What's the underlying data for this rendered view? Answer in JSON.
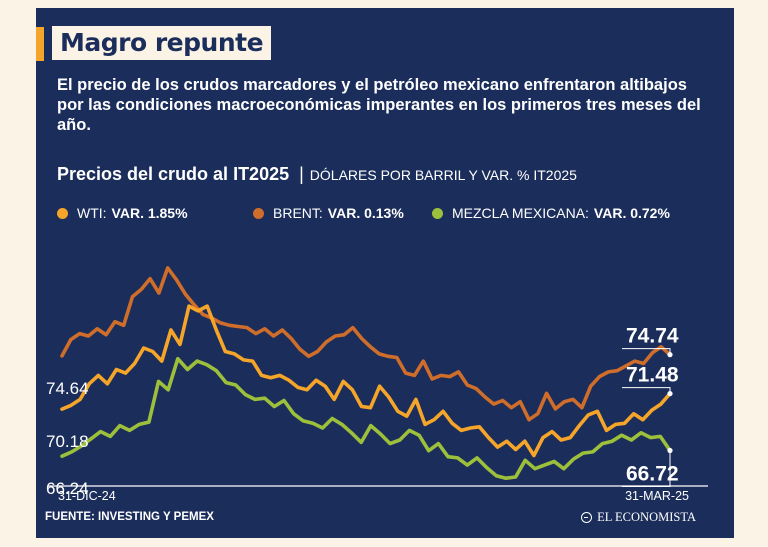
{
  "header": {
    "title": "Magro repunte",
    "subtitle": "El precio de los crudos marcadores y el petróleo mexicano enfrentaron altibajos por las condiciones macroeconómicas imperantes en los primeros tres meses del año."
  },
  "chart_header": {
    "title": "Precios del crudo al IT2025",
    "separator": "|",
    "units": "DÓLARES POR BARRIL Y VAR. % IT2025"
  },
  "legend": [
    {
      "name": "WTI:",
      "var": "VAR. 1.85%",
      "color": "#f5a52a"
    },
    {
      "name": "BRENT:",
      "var": "VAR. 0.13%",
      "color": "#cf6d2b"
    },
    {
      "name": "MEZCLA MEXICANA:",
      "var": "VAR. 0.72%",
      "color": "#9dc03c"
    }
  ],
  "footer": {
    "source": "FUENTE: INVESTING Y PEMEX",
    "brand": "EL ECONOMISTA"
  },
  "chart_data": {
    "type": "line",
    "title": "Precios del crudo al IT2025",
    "xlabel": "",
    "ylabel": "Dólares por barril",
    "x_labels": [
      "31-DIC-24",
      "31-MAR-25"
    ],
    "ylim": [
      64,
      84
    ],
    "grid": false,
    "legend_position": "top",
    "start_labels": [
      {
        "series": "BRENT",
        "text": "74.64",
        "value": 74.64
      },
      {
        "series": "WTI",
        "text": "70.18",
        "value": 70.18
      },
      {
        "series": "MEZCLA MEXICANA",
        "text": "66.24",
        "value": 66.24
      }
    ],
    "end_labels": [
      {
        "series": "BRENT",
        "text": "74.74",
        "value": 74.74
      },
      {
        "series": "WTI",
        "text": "71.48",
        "value": 71.48
      },
      {
        "series": "MEZCLA MEXICANA",
        "text": "66.72",
        "value": 66.72
      }
    ],
    "series": [
      {
        "name": "BRENT",
        "color": "#cf6d2b",
        "values": [
          74.64,
          76.0,
          76.5,
          76.3,
          76.9,
          76.4,
          77.5,
          77.2,
          79.6,
          80.2,
          81.1,
          79.9,
          82.0,
          81.0,
          79.8,
          78.9,
          78.1,
          77.8,
          77.4,
          77.2,
          77.1,
          77.0,
          76.5,
          76.9,
          76.3,
          76.8,
          76.1,
          75.2,
          74.6,
          75.0,
          75.8,
          76.3,
          76.4,
          77.0,
          76.1,
          75.4,
          74.8,
          74.6,
          74.5,
          73.2,
          73.0,
          74.2,
          72.7,
          73.0,
          72.9,
          73.3,
          72.2,
          71.9,
          71.2,
          70.6,
          70.9,
          70.3,
          70.8,
          69.3,
          69.8,
          71.5,
          70.2,
          70.8,
          71.0,
          70.3,
          72.1,
          72.9,
          73.3,
          73.4,
          73.8,
          74.2,
          74.0,
          74.9,
          75.4,
          74.74
        ]
      },
      {
        "name": "WTI",
        "color": "#f5a52a",
        "values": [
          70.18,
          70.5,
          71.0,
          72.3,
          73.0,
          72.3,
          73.5,
          73.2,
          74.0,
          75.3,
          75.0,
          74.2,
          76.8,
          75.6,
          78.8,
          78.4,
          78.8,
          76.8,
          75.0,
          74.8,
          74.3,
          74.2,
          73.0,
          72.8,
          73.0,
          72.6,
          72.0,
          71.8,
          72.6,
          72.1,
          71.0,
          72.5,
          71.8,
          70.4,
          70.3,
          72.1,
          71.2,
          70.0,
          69.6,
          71.0,
          68.9,
          69.3,
          70.0,
          69.0,
          68.4,
          68.6,
          68.7,
          67.8,
          67.0,
          67.5,
          66.8,
          67.5,
          66.3,
          67.8,
          68.3,
          67.6,
          67.8,
          68.8,
          69.7,
          70.0,
          68.4,
          68.9,
          69.0,
          69.8,
          69.3,
          70.1,
          70.6,
          71.48
        ]
      },
      {
        "name": "MEZCLA MEXICANA",
        "color": "#9dc03c",
        "values": [
          66.24,
          66.6,
          67.1,
          67.7,
          68.3,
          67.9,
          68.8,
          68.4,
          68.9,
          69.1,
          72.5,
          71.8,
          74.4,
          73.5,
          74.2,
          73.9,
          73.4,
          72.4,
          72.2,
          71.4,
          71.0,
          71.1,
          70.4,
          70.9,
          69.8,
          69.2,
          69.0,
          68.6,
          69.4,
          68.9,
          68.2,
          67.4,
          68.8,
          68.1,
          67.3,
          67.6,
          68.4,
          68.0,
          66.7,
          67.3,
          66.2,
          66.1,
          65.5,
          66.1,
          65.3,
          64.6,
          64.4,
          64.5,
          65.9,
          65.2,
          65.5,
          65.8,
          65.2,
          66.0,
          66.5,
          66.6,
          67.3,
          67.5,
          68.0,
          67.6,
          68.2,
          67.8,
          67.9,
          66.72
        ]
      }
    ]
  }
}
